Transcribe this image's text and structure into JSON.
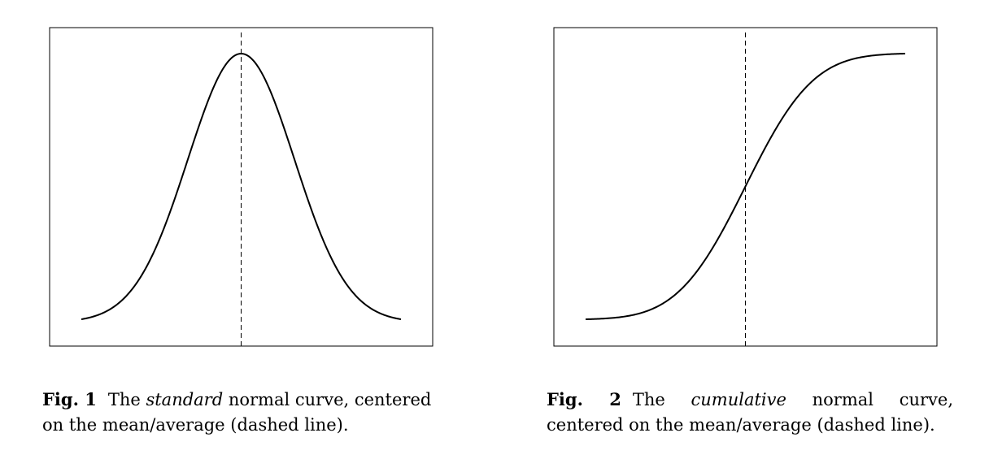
{
  "chart_data": [
    {
      "type": "line",
      "series": [
        {
          "curve": "normal_pdf"
        }
      ],
      "mean": 0,
      "x_range": [
        -3,
        3
      ],
      "y_range": [
        0,
        0.4
      ],
      "reference_line": {
        "x": 0,
        "style": "dashed"
      },
      "axes": "none",
      "grid": false,
      "caption": {
        "label": "Fig. 1",
        "pre": "The ",
        "em": "standard",
        "post": " normal curve, centered on the mean/average (dashed line)."
      }
    },
    {
      "type": "line",
      "series": [
        {
          "curve": "normal_cdf"
        }
      ],
      "mean": 0,
      "x_range": [
        -3,
        3
      ],
      "y_range": [
        0,
        1
      ],
      "reference_line": {
        "x": 0,
        "style": "dashed"
      },
      "axes": "none",
      "grid": false,
      "caption": {
        "label": "Fig. 2",
        "pre": "The ",
        "em": "cumulative",
        "post": " normal curve, centered on the mean/average (dashed line)."
      }
    }
  ]
}
